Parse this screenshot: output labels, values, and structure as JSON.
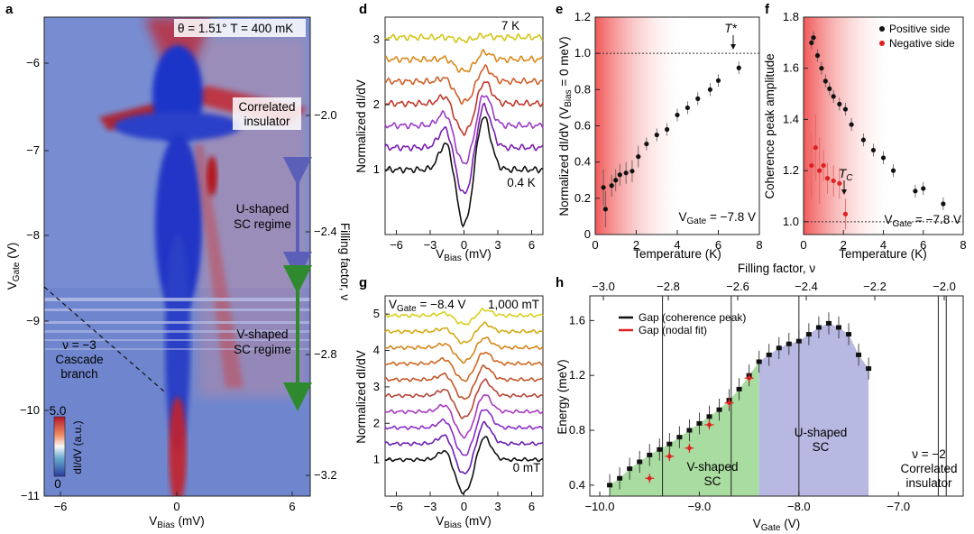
{
  "panel_labels": {
    "a": "a",
    "d": "d",
    "e": "e",
    "f": "f",
    "g": "g",
    "h": "h"
  },
  "panel_a": {
    "header": "θ = 1.51° T = 400 mK",
    "xlabel": "V_Bias (mV)",
    "ylabel": "V_Gate (V)",
    "ylabel_right": "Filling factor, ν",
    "xticks": [
      "−6",
      "0",
      "6"
    ],
    "yticks": [
      "−6",
      "−7",
      "−8",
      "−9",
      "−10",
      "−11"
    ],
    "ryticks": [
      "−2.0",
      "−2.4",
      "−2.8",
      "−3.2"
    ],
    "annotations": {
      "correlated_1": "Correlated",
      "correlated_2": "insulator",
      "u_1": "U-shaped",
      "u_2": "SC regime",
      "v_1": "V-shaped",
      "v_2": "SC regime",
      "cascade_1": "ν = −3",
      "cascade_2": "Cascade",
      "cascade_3": "branch"
    },
    "colorbar": {
      "max": "5.0",
      "min": "0",
      "label": "dI/dV (a.u.)"
    },
    "colors": {
      "blue": "#3e59c9",
      "red": "#c4202a",
      "u_arrow": "#5b5fb8",
      "v_arrow": "#2f8a2f"
    }
  },
  "panel_d": {
    "xlabel": "V_Bias (mV)",
    "ylabel": "Normalized dI/dV",
    "xticks": [
      "−6",
      "−3",
      "0",
      "3",
      "6"
    ],
    "yticks": [
      "1",
      "2",
      "3"
    ],
    "label_top": "7 K",
    "label_bottom": "0.4 K",
    "colors": [
      "#111111",
      "#7a1fb0",
      "#9c3cc6",
      "#c0392b",
      "#d0602a",
      "#d88a1e",
      "#d3c718"
    ]
  },
  "panel_e": {
    "xlabel": "Temperature (K)",
    "ylabel": "Normalized dI/dV (V_Bias = 0 meV)",
    "xticks": [
      "0",
      "2",
      "4",
      "6",
      "8"
    ],
    "yticks": [
      "0",
      "0.2",
      "0.4",
      "0.6",
      "0.8",
      "1.0",
      "1.2"
    ],
    "marker": "T*",
    "vgate": "V_Gate = −7.8 V"
  },
  "panel_f": {
    "xlabel": "Temperature (K)",
    "ylabel": "Coherence peak amplitude",
    "xticks": [
      "0",
      "2",
      "4",
      "6",
      "8"
    ],
    "yticks": [
      "1.0",
      "1.2",
      "1.4",
      "1.6",
      "1.8"
    ],
    "legend_pos": "Positive side",
    "legend_neg": "Negative side",
    "marker": "T_C",
    "vgate": "V_Gate = −7.8 V"
  },
  "panel_g": {
    "xlabel": "V_Bias (mV)",
    "ylabel": "Normalized dI/dV",
    "xticks": [
      "−6",
      "−3",
      "0",
      "3",
      "6"
    ],
    "yticks": [
      "1",
      "2",
      "3",
      "4",
      "5"
    ],
    "vgate": "V_Gate = −8.4 V",
    "label_top": "1,000 mT",
    "label_bottom": "0 mT",
    "colors": [
      "#111111",
      "#6a1fb0",
      "#8a2ec8",
      "#a83bbf",
      "#b5473a",
      "#c4552a",
      "#cf6a22",
      "#d6861c",
      "#d4aa14",
      "#d8d020"
    ]
  },
  "chart_data": [
    {
      "type": "scatter",
      "title": "e",
      "xlabel": "Temperature (K)",
      "ylabel": "Normalized dI/dV (V_Bias = 0 meV)",
      "xlim": [
        0,
        8
      ],
      "ylim": [
        0,
        1.2
      ],
      "x": [
        0.4,
        0.5,
        0.8,
        1.0,
        1.2,
        1.5,
        1.8,
        2.1,
        2.5,
        3.0,
        3.5,
        4.0,
        4.5,
        5.0,
        5.6,
        6.0,
        7.0
      ],
      "y": [
        0.26,
        0.14,
        0.27,
        0.3,
        0.33,
        0.34,
        0.35,
        0.43,
        0.5,
        0.55,
        0.58,
        0.66,
        0.7,
        0.75,
        0.8,
        0.85,
        0.92
      ],
      "reference_line": 1.0
    },
    {
      "type": "scatter",
      "title": "f",
      "xlabel": "Temperature (K)",
      "ylabel": "Coherence peak amplitude",
      "xlim": [
        0,
        8
      ],
      "ylim": [
        0.95,
        1.8
      ],
      "series": [
        {
          "name": "Positive side",
          "x": [
            0.4,
            0.5,
            0.7,
            0.9,
            1.1,
            1.3,
            1.5,
            1.8,
            2.1,
            2.4,
            3.0,
            3.5,
            4.0,
            4.5,
            5.6,
            6.0,
            7.0
          ],
          "y": [
            1.7,
            1.72,
            1.65,
            1.6,
            1.55,
            1.52,
            1.49,
            1.46,
            1.44,
            1.38,
            1.32,
            1.28,
            1.25,
            1.2,
            1.12,
            1.13,
            1.07
          ]
        },
        {
          "name": "Negative side",
          "x": [
            0.4,
            0.6,
            0.8,
            1.0,
            1.2,
            1.5,
            1.8,
            2.1
          ],
          "y": [
            1.22,
            1.29,
            1.2,
            1.22,
            1.17,
            1.16,
            1.15,
            1.03
          ]
        }
      ],
      "reference_line": 1.0
    },
    {
      "type": "scatter",
      "title": "h",
      "xlabel": "V_Gate (V)",
      "ylabel": "Energy (meV)",
      "x2label": "Filling factor, ν",
      "xlim": [
        -10.1,
        -6.35
      ],
      "ylim": [
        0.32,
        1.78
      ],
      "xticks": [
        "−10.0",
        "−9.0",
        "−8.0",
        "−7.0"
      ],
      "yticks": [
        "0.4",
        "0.8",
        "1.2",
        "1.6"
      ],
      "x2ticks": [
        "−3.0",
        "−2.8",
        "−2.6",
        "−2.4",
        "−2.2",
        "−2.0"
      ],
      "series": [
        {
          "name": "Gap (coherence peak)",
          "x": [
            -9.9,
            -9.8,
            -9.7,
            -9.6,
            -9.5,
            -9.4,
            -9.3,
            -9.2,
            -9.1,
            -9.0,
            -8.9,
            -8.8,
            -8.7,
            -8.6,
            -8.5,
            -8.4,
            -8.3,
            -8.2,
            -8.1,
            -8.0,
            -7.9,
            -7.8,
            -7.7,
            -7.6,
            -7.5,
            -7.4,
            -7.3
          ],
          "y": [
            0.4,
            0.45,
            0.52,
            0.57,
            0.62,
            0.66,
            0.7,
            0.75,
            0.8,
            0.85,
            0.9,
            0.95,
            1.02,
            1.1,
            1.2,
            1.3,
            1.35,
            1.4,
            1.43,
            1.45,
            1.5,
            1.55,
            1.58,
            1.55,
            1.5,
            1.35,
            1.25
          ]
        },
        {
          "name": "Gap (nodal fit)",
          "x": [
            -9.5,
            -9.3,
            -9.1,
            -8.9,
            -8.7,
            -8.5
          ],
          "y": [
            0.45,
            0.61,
            0.67,
            0.84,
            1.0,
            1.18
          ]
        }
      ],
      "regions": [
        "V-shaped SC",
        "U-shaped SC",
        "ν = −2 Correlated insulator"
      ]
    }
  ],
  "panel_h": {
    "legend_black": "Gap (coherence peak)",
    "legend_red": "Gap (nodal fit)",
    "v_1": "V-shaped",
    "v_2": "SC",
    "u_1": "U-shaped",
    "u_2": "SC",
    "ci_1": "ν = −2",
    "ci_2": "Correlated",
    "ci_3": "insulator",
    "colors": {
      "v_fill": "#a9dca0",
      "u_fill": "#b7b9e2"
    }
  }
}
